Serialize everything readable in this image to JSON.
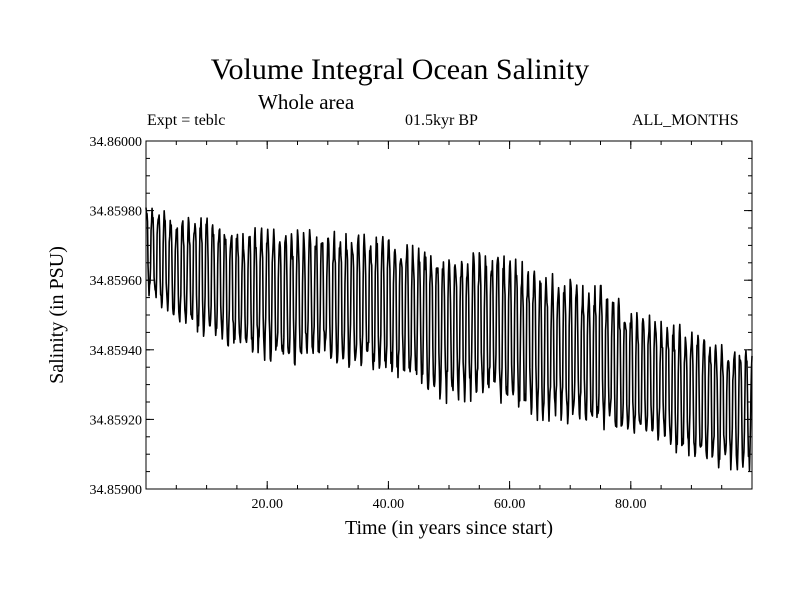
{
  "chart_data": {
    "type": "line",
    "title": "Volume Integral Ocean Salinity",
    "subtitle": "Whole area",
    "annotations": {
      "experiment": "Expt = teblc",
      "period": "01.5kyr BP",
      "months": "ALL_MONTHS"
    },
    "xlabel": "Time (in years since start)",
    "ylabel": "Salinity (in PSU)",
    "xlim": [
      0,
      100
    ],
    "ylim": [
      34.859,
      34.86
    ],
    "x_ticks": [
      20,
      40,
      60,
      80
    ],
    "x_tick_labels": [
      "20.00",
      "40.00",
      "60.00",
      "80.00"
    ],
    "y_ticks": [
      34.859,
      34.8592,
      34.8594,
      34.8596,
      34.8598,
      34.86
    ],
    "y_tick_labels": [
      "34.85900",
      "34.85920",
      "34.85940",
      "34.85960",
      "34.85980",
      "34.86000"
    ],
    "grid": false,
    "series": [
      {
        "name": "salinity",
        "sampling": "monthly",
        "annual_cycle": true,
        "x": [
          0,
          5,
          10,
          15,
          20,
          25,
          30,
          35,
          40,
          45,
          50,
          55,
          60,
          65,
          70,
          75,
          80,
          85,
          90,
          95,
          100
        ],
        "annual_max": [
          34.85982,
          34.85978,
          34.85978,
          34.85974,
          34.85975,
          34.85974,
          34.85974,
          34.85973,
          34.85972,
          34.8597,
          34.85966,
          34.85968,
          34.85967,
          34.85963,
          34.8596,
          34.85958,
          34.85952,
          34.85948,
          34.85946,
          34.85942,
          34.8594
        ],
        "annual_min": [
          34.85956,
          34.85948,
          34.85944,
          34.8594,
          34.85937,
          34.85935,
          34.85938,
          34.85934,
          34.85934,
          34.8593,
          34.85925,
          34.85926,
          34.85925,
          34.8592,
          34.85918,
          34.85918,
          34.85914,
          34.85914,
          34.85908,
          34.85906,
          34.85906
        ]
      }
    ]
  }
}
